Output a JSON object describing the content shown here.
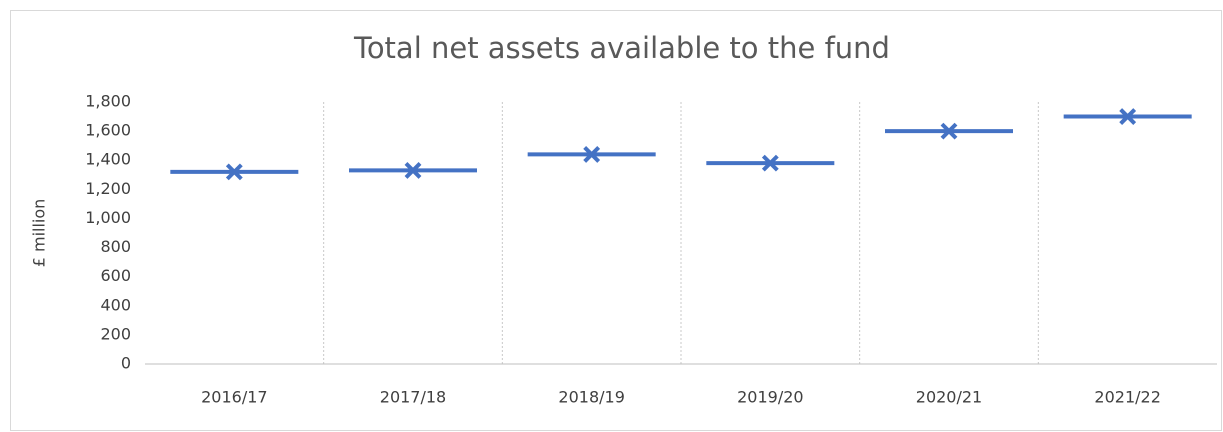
{
  "chart_data": {
    "type": "marker",
    "title": "Total net assets available to the fund",
    "y_label": "£ million",
    "categories": [
      "2016/17",
      "2017/18",
      "2018/19",
      "2019/20",
      "2020/21",
      "2021/22"
    ],
    "values": [
      1320,
      1330,
      1440,
      1380,
      1600,
      1700
    ],
    "color": "#4472c4",
    "ylim": [
      0,
      1800
    ],
    "yticks": [
      0,
      200,
      400,
      600,
      800,
      {
        "value": 1000,
        "label": "1,000"
      },
      {
        "value": 1200,
        "label": "1,200"
      },
      {
        "value": 1400,
        "label": "1,400"
      },
      {
        "value": 1600,
        "label": "1,600"
      },
      {
        "value": 1800,
        "label": "1,800"
      }
    ],
    "grid": false
  }
}
